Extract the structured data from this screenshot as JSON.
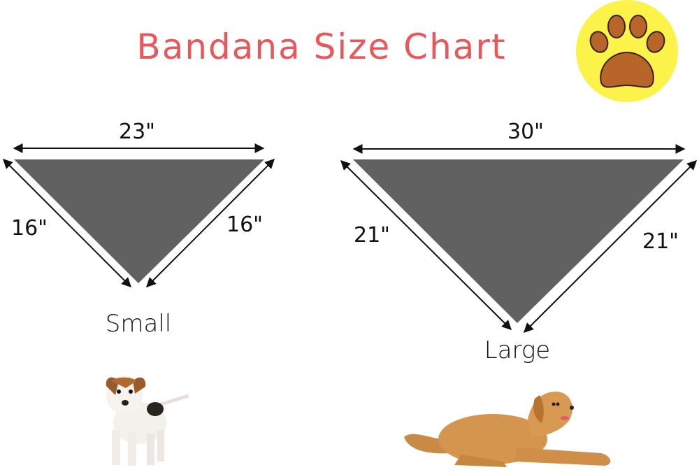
{
  "title": "Bandana Size Chart",
  "colors": {
    "title": "#e8585b",
    "triangle": "#616161",
    "badge": "#fbf24a",
    "paw": "#b8652a"
  },
  "badge_icon": "paw-print-icon",
  "sizes": [
    {
      "name": "Small",
      "top": "23\"",
      "left": "16\"",
      "right": "16\"",
      "dog": "puppy"
    },
    {
      "name": "Large",
      "top": "30\"",
      "left": "21\"",
      "right": "21\"",
      "dog": "golden-retriever"
    }
  ]
}
